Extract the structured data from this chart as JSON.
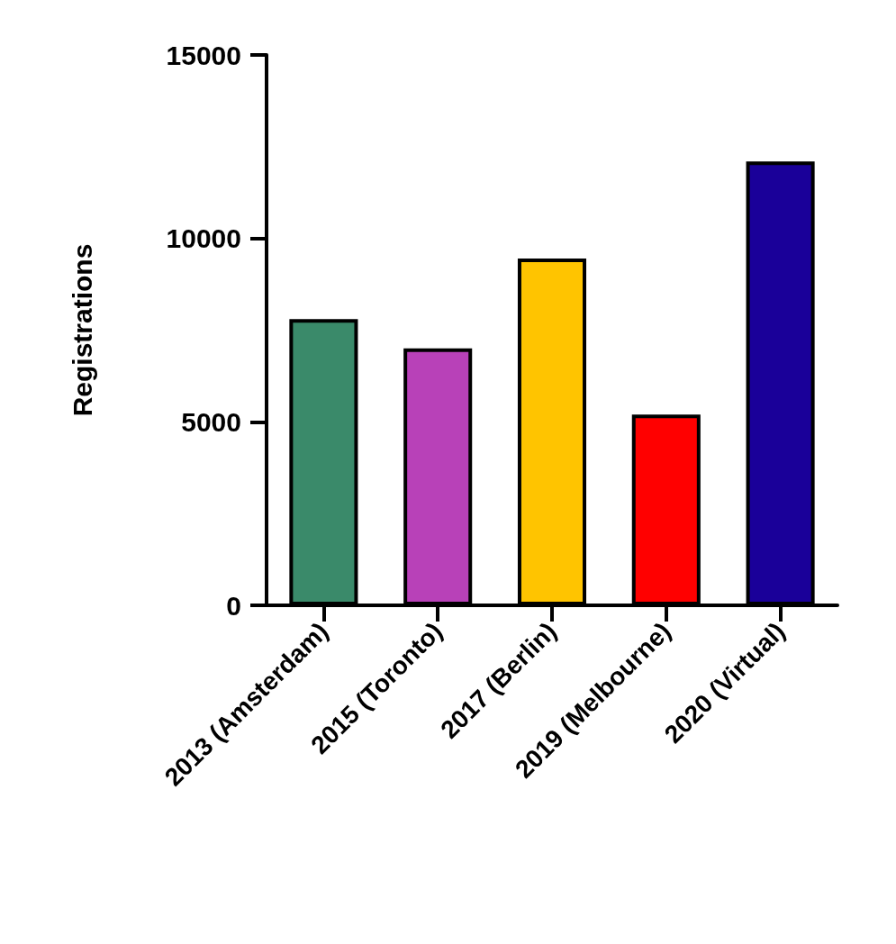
{
  "chart_data": {
    "type": "bar",
    "ylabel": "Registrations",
    "categories": [
      "2013 (Amsterdam)",
      "2015 (Toronto)",
      "2017 (Berlin)",
      "2019 (Melbourne)",
      "2020 (Virtual)"
    ],
    "values": [
      7800,
      7000,
      9450,
      5200,
      12100
    ],
    "colors": [
      "#3a8a6a",
      "#b841b8",
      "#ffc400",
      "#ff0000",
      "#1a0099"
    ],
    "ylim": [
      0,
      15000
    ],
    "yticks": [
      0,
      5000,
      10000,
      15000
    ],
    "grid": false
  }
}
